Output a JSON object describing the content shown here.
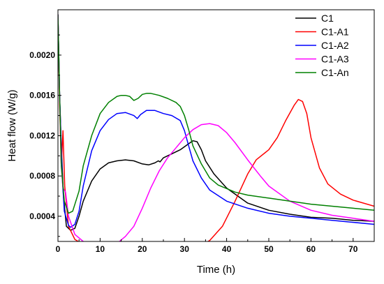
{
  "chart_data": {
    "type": "line",
    "title": "",
    "xlabel": "Time (h)",
    "ylabel": "Heat flow (W/g)",
    "xlim": [
      0,
      75
    ],
    "ylim": [
      0.00015,
      0.00245
    ],
    "x_ticks": [
      0,
      10,
      20,
      30,
      40,
      50,
      60,
      70
    ],
    "x_tick_labels": [
      "0",
      "10",
      "20",
      "30",
      "40",
      "50",
      "60",
      "70"
    ],
    "y_ticks": [
      0.0004,
      0.0008,
      0.0012,
      0.0016,
      0.002
    ],
    "y_tick_labels": [
      "0.0004",
      "0.0008",
      "0.0012",
      "0.0016",
      "0.0020"
    ],
    "grid": false,
    "legend_position": "top-right",
    "series": [
      {
        "name": "C1",
        "color": "#000000",
        "points": [
          [
            0,
            0.0024
          ],
          [
            0.4,
            0.0016
          ],
          [
            0.8,
            0.0011
          ],
          [
            1.3,
            0.0006
          ],
          [
            2,
            0.0003
          ],
          [
            3,
            0.00026
          ],
          [
            4,
            0.00028
          ],
          [
            5,
            0.0004
          ],
          [
            6,
            0.00055
          ],
          [
            8,
            0.00075
          ],
          [
            10,
            0.00087
          ],
          [
            12,
            0.00093
          ],
          [
            14,
            0.00095
          ],
          [
            16,
            0.00096
          ],
          [
            18,
            0.00095
          ],
          [
            20,
            0.00092
          ],
          [
            21.5,
            0.00091
          ],
          [
            23,
            0.00093
          ],
          [
            23.8,
            0.00095
          ],
          [
            24.2,
            0.00094
          ],
          [
            25,
            0.00098
          ],
          [
            27,
            0.00102
          ],
          [
            29,
            0.00106
          ],
          [
            31,
            0.00112
          ],
          [
            32,
            0.00115
          ],
          [
            33,
            0.00114
          ],
          [
            34,
            0.00106
          ],
          [
            35,
            0.00095
          ],
          [
            37,
            0.00082
          ],
          [
            40,
            0.00068
          ],
          [
            45,
            0.00053
          ],
          [
            50,
            0.00046
          ],
          [
            55,
            0.00042
          ],
          [
            60,
            0.00039
          ],
          [
            65,
            0.00038
          ],
          [
            70,
            0.00036
          ],
          [
            75,
            0.00035
          ]
        ]
      },
      {
        "name": "C1-A1",
        "color": "#ff0000",
        "points": [
          [
            0,
            0.0024
          ],
          [
            0.4,
            0.0015
          ],
          [
            0.8,
            0.0009
          ],
          [
            1.2,
            0.00125
          ],
          [
            1.6,
            0.0007
          ],
          [
            2.5,
            0.0003
          ],
          [
            4,
            0.00017
          ],
          [
            6,
            0.00012
          ],
          [
            10,
            8e-05
          ],
          [
            15,
            6e-05
          ],
          [
            20,
            5e-05
          ],
          [
            25,
            5e-05
          ],
          [
            30,
            6e-05
          ],
          [
            33,
            9e-05
          ],
          [
            36,
            0.00016
          ],
          [
            39,
            0.0003
          ],
          [
            42,
            0.00055
          ],
          [
            45,
            0.00082
          ],
          [
            47,
            0.00096
          ],
          [
            50,
            0.00106
          ],
          [
            52,
            0.00118
          ],
          [
            54,
            0.00135
          ],
          [
            56,
            0.0015
          ],
          [
            57,
            0.00156
          ],
          [
            58,
            0.00154
          ],
          [
            59,
            0.00142
          ],
          [
            60,
            0.00118
          ],
          [
            62,
            0.00088
          ],
          [
            64,
            0.00072
          ],
          [
            67,
            0.00062
          ],
          [
            70,
            0.00056
          ],
          [
            75,
            0.0005
          ]
        ]
      },
      {
        "name": "C1-A2",
        "color": "#0000ff",
        "points": [
          [
            0,
            0.0024
          ],
          [
            0.4,
            0.0016
          ],
          [
            1,
            0.0008
          ],
          [
            1.5,
            0.00045
          ],
          [
            2.5,
            0.00031
          ],
          [
            3,
            0.00029
          ],
          [
            4,
            0.00032
          ],
          [
            5,
            0.00045
          ],
          [
            6,
            0.0007
          ],
          [
            8,
            0.00105
          ],
          [
            10,
            0.00125
          ],
          [
            12,
            0.00136
          ],
          [
            14,
            0.00142
          ],
          [
            16,
            0.00143
          ],
          [
            18,
            0.0014
          ],
          [
            18.8,
            0.00137
          ],
          [
            19.6,
            0.00141
          ],
          [
            21,
            0.00145
          ],
          [
            23,
            0.00145
          ],
          [
            25,
            0.00142
          ],
          [
            27,
            0.0014
          ],
          [
            29,
            0.00135
          ],
          [
            30,
            0.00125
          ],
          [
            31,
            0.0011
          ],
          [
            32,
            0.00095
          ],
          [
            34,
            0.00078
          ],
          [
            36,
            0.00066
          ],
          [
            40,
            0.00055
          ],
          [
            45,
            0.00048
          ],
          [
            50,
            0.00043
          ],
          [
            55,
            0.0004
          ],
          [
            60,
            0.00038
          ],
          [
            65,
            0.00036
          ],
          [
            70,
            0.00034
          ],
          [
            75,
            0.00032
          ]
        ]
      },
      {
        "name": "C1-A3",
        "color": "#ff00ff",
        "points": [
          [
            0,
            0.0024
          ],
          [
            0.4,
            0.0016
          ],
          [
            0.8,
            0.0009
          ],
          [
            1.2,
            0.00068
          ],
          [
            1.8,
            0.00064
          ],
          [
            2.5,
            0.0004
          ],
          [
            4,
            0.00022
          ],
          [
            6,
            0.00015
          ],
          [
            8,
            0.00012
          ],
          [
            10,
            0.0001
          ],
          [
            12,
            0.0001
          ],
          [
            14,
            0.00013
          ],
          [
            16,
            0.0002
          ],
          [
            18,
            0.0003
          ],
          [
            20,
            0.00048
          ],
          [
            22,
            0.00068
          ],
          [
            24,
            0.00085
          ],
          [
            26,
            0.00098
          ],
          [
            28,
            0.00108
          ],
          [
            30,
            0.00118
          ],
          [
            32,
            0.00126
          ],
          [
            34,
            0.00131
          ],
          [
            36,
            0.00132
          ],
          [
            38,
            0.0013
          ],
          [
            40,
            0.00123
          ],
          [
            42,
            0.00113
          ],
          [
            45,
            0.00096
          ],
          [
            48,
            0.0008
          ],
          [
            50,
            0.0007
          ],
          [
            55,
            0.00055
          ],
          [
            60,
            0.00046
          ],
          [
            65,
            0.00041
          ],
          [
            70,
            0.00038
          ],
          [
            75,
            0.00035
          ]
        ]
      },
      {
        "name": "C1-An",
        "color": "#008000",
        "points": [
          [
            0,
            0.0024
          ],
          [
            0.4,
            0.0016
          ],
          [
            0.8,
            0.0009
          ],
          [
            1.5,
            0.00055
          ],
          [
            2.5,
            0.00043
          ],
          [
            3.5,
            0.00045
          ],
          [
            5,
            0.00065
          ],
          [
            6,
            0.0009
          ],
          [
            8,
            0.0012
          ],
          [
            10,
            0.00142
          ],
          [
            12,
            0.00153
          ],
          [
            14,
            0.00159
          ],
          [
            15,
            0.0016
          ],
          [
            16,
            0.0016
          ],
          [
            17,
            0.00159
          ],
          [
            18,
            0.00155
          ],
          [
            19,
            0.00157
          ],
          [
            20,
            0.00161
          ],
          [
            21,
            0.00162
          ],
          [
            22,
            0.00162
          ],
          [
            24,
            0.0016
          ],
          [
            26,
            0.00157
          ],
          [
            28,
            0.00153
          ],
          [
            29,
            0.00149
          ],
          [
            30,
            0.0014
          ],
          [
            31,
            0.00126
          ],
          [
            32,
            0.0011
          ],
          [
            34,
            0.00092
          ],
          [
            36,
            0.00078
          ],
          [
            38,
            0.00071
          ],
          [
            42,
            0.00064
          ],
          [
            45,
            0.00061
          ],
          [
            50,
            0.00058
          ],
          [
            55,
            0.00055
          ],
          [
            60,
            0.00052
          ],
          [
            65,
            0.0005
          ],
          [
            70,
            0.00048
          ],
          [
            75,
            0.00046
          ]
        ]
      }
    ]
  }
}
